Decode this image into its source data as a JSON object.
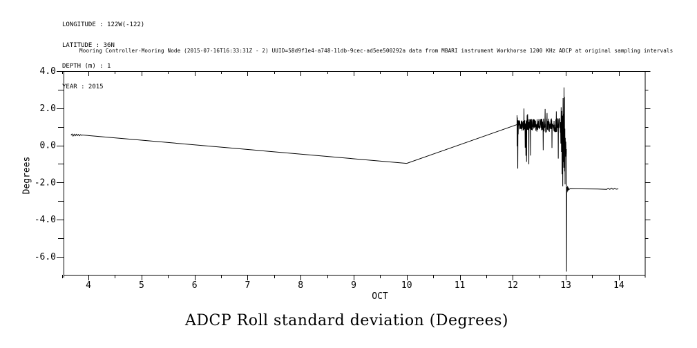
{
  "colors": {
    "foreground": "#000000",
    "background": "#ffffff"
  },
  "meta": {
    "lines": [
      "LONGITUDE : 122W(-122)",
      "LATITUDE : 36N",
      "DEPTH (m) : 1",
      "YEAR : 2015"
    ]
  },
  "header": {
    "text": "Mooring Controller-Mooring Node (2015-07-16T16:33:31Z - 2) UUID=58d9f1e4-a748-11db-9cec-ad5ee500292a data from MBARI instrument Workhorse 1200 KHz ADCP at original sampling intervals"
  },
  "chart_data": {
    "type": "line",
    "title": "ADCP Roll standard deviation (Degrees)",
    "xlabel": "OCT",
    "ylabel": "Degrees",
    "xlim": [
      3.53,
      14.49
    ],
    "ylim": [
      -6.97,
      4.0
    ],
    "grid": false,
    "legend": null,
    "line_color": "#000000",
    "x_major_ticks": [
      4,
      5,
      6,
      7,
      8,
      9,
      10,
      11,
      12,
      13,
      14
    ],
    "x_tick_labels": [
      "4",
      "5",
      "6",
      "7",
      "8",
      "9",
      "10",
      "11",
      "12",
      "13",
      "14"
    ],
    "x_minor_ticks": [
      3.5,
      4.5,
      5.5,
      6.5,
      7.5,
      8.5,
      9.5,
      10.5,
      11.5,
      12.5,
      13.5
    ],
    "y_major_ticks": [
      4,
      2,
      0,
      -2,
      -4,
      -6
    ],
    "y_tick_labels": [
      "4.0",
      "2.0",
      "0.0",
      "-2.0",
      "-4.0",
      "-6.0"
    ],
    "y_minor_ticks": [
      3,
      1,
      -1,
      -3,
      -5
    ],
    "key_points": {
      "start": {
        "x": 3.67,
        "y": 0.55
      },
      "local_min": {
        "x": 10.0,
        "y": -0.97
      },
      "rise_to": {
        "x": 12.08,
        "y": 1.12
      },
      "noisy_band": {
        "x_start": 12.08,
        "x_end": 13.0,
        "mean": 1.08,
        "envelope": [
          -1.3,
          2.1
        ]
      },
      "peak": {
        "x": 12.97,
        "y": 3.12
      },
      "drop": {
        "x": 13.01,
        "y": -6.8
      },
      "tail": {
        "x_start": 13.02,
        "x_end": 13.99,
        "y": -2.34
      }
    },
    "segments": [
      {
        "type": "poly",
        "pts": [
          [
            3.67,
            0.55
          ],
          [
            3.69,
            0.61
          ],
          [
            3.71,
            0.5
          ],
          [
            3.73,
            0.6
          ],
          [
            3.75,
            0.52
          ],
          [
            3.77,
            0.6
          ],
          [
            3.79,
            0.53
          ],
          [
            3.81,
            0.59
          ],
          [
            3.83,
            0.52
          ],
          [
            3.85,
            0.58
          ],
          [
            3.87,
            0.54
          ],
          [
            3.88,
            0.56
          ]
        ]
      },
      {
        "type": "poly",
        "pts": [
          [
            3.88,
            0.56
          ],
          [
            10.0,
            -0.97
          ]
        ]
      },
      {
        "type": "poly",
        "pts": [
          [
            10.0,
            -0.97
          ],
          [
            12.08,
            1.12
          ]
        ]
      },
      {
        "type": "poly",
        "pts": [
          [
            12.08,
            1.62
          ],
          [
            12.083,
            -0.05
          ],
          [
            12.086,
            1.5
          ],
          [
            12.09,
            0.35
          ],
          [
            12.094,
            -1.25
          ],
          [
            12.098,
            1.35
          ],
          [
            12.102,
            0.6
          ],
          [
            12.105,
            1.1
          ]
        ]
      },
      {
        "type": "noise",
        "x_start": 12.105,
        "x_end": 12.9,
        "step": 0.0033,
        "mean": 1.08,
        "amp_start": 0.3,
        "amp_end": 0.42,
        "down_spike_prob": 0.05,
        "down_spike_lo": -1.3,
        "down_spike_hi": 0.0,
        "up_spike_prob": 0.04,
        "up_spike_lo": 1.55,
        "up_spike_hi": 2.05,
        "seed": 20151013
      },
      {
        "type": "poly",
        "pts": [
          [
            12.9,
            1.25
          ],
          [
            12.906,
            0.1
          ],
          [
            12.912,
            2.05
          ],
          [
            12.918,
            -0.35
          ],
          [
            12.924,
            1.85
          ],
          [
            12.93,
            -1.55
          ],
          [
            12.936,
            1.6
          ],
          [
            12.942,
            -2.2
          ],
          [
            12.948,
            2.55
          ],
          [
            12.954,
            -0.9
          ],
          [
            12.958,
            1.7
          ],
          [
            12.962,
            -1.2
          ],
          [
            12.966,
            3.12
          ],
          [
            12.97,
            0.8
          ],
          [
            12.974,
            2.6
          ],
          [
            12.978,
            -1.4
          ],
          [
            12.982,
            0.9
          ],
          [
            12.986,
            -2.1
          ],
          [
            12.99,
            0.4
          ],
          [
            12.995,
            -0.6
          ],
          [
            13.0,
            0.2
          ],
          [
            13.005,
            -0.45
          ]
        ]
      },
      {
        "type": "poly",
        "pts": [
          [
            13.01,
            -0.2
          ],
          [
            13.014,
            -6.8
          ],
          [
            13.018,
            -2.25
          ],
          [
            13.025,
            -2.52
          ],
          [
            13.032,
            -2.2
          ],
          [
            13.04,
            -2.45
          ],
          [
            13.05,
            -2.3
          ],
          [
            13.06,
            -2.38
          ],
          [
            13.08,
            -2.33
          ],
          [
            13.3,
            -2.34
          ],
          [
            13.6,
            -2.35
          ],
          [
            13.77,
            -2.37
          ],
          [
            13.8,
            -2.31
          ],
          [
            13.83,
            -2.37
          ],
          [
            13.86,
            -2.3
          ],
          [
            13.89,
            -2.37
          ],
          [
            13.92,
            -2.31
          ],
          [
            13.95,
            -2.36
          ],
          [
            13.99,
            -2.34
          ]
        ]
      }
    ]
  }
}
